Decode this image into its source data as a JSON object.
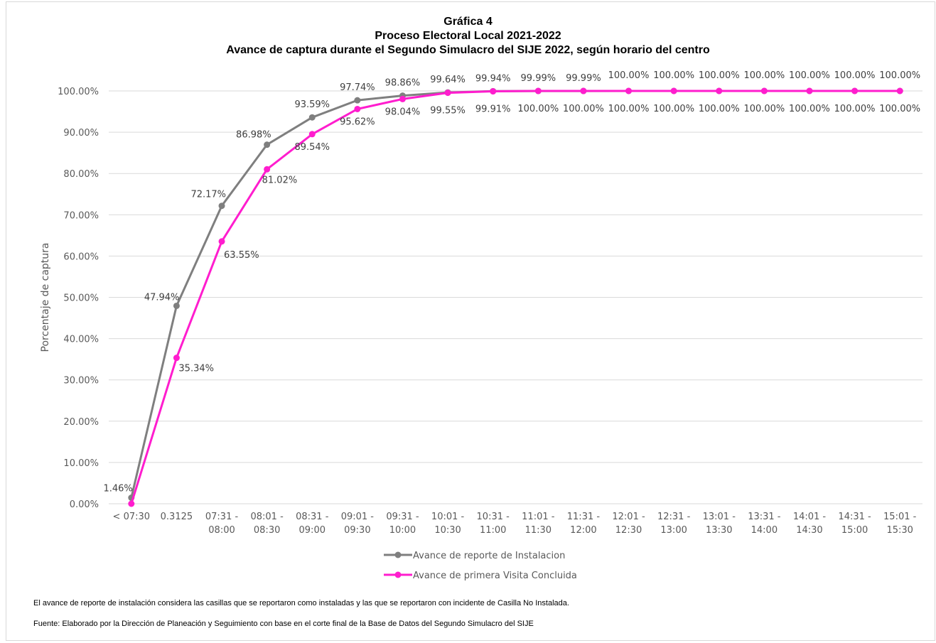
{
  "chart_data": {
    "type": "line",
    "title_lines": [
      "Gráfica 4",
      "Proceso Electoral Local 2021-2022",
      "Avance de captura durante el Segundo Simulacro del SIJE 2022, según horario del centro"
    ],
    "ylabel": "Porcentaje de captura",
    "xlabel": "",
    "ylim": [
      0,
      100
    ],
    "ytick_step": 10,
    "grid": true,
    "legend_position": "bottom",
    "categories": [
      [
        "< 07:30"
      ],
      [
        "0.3125"
      ],
      [
        "07:31 -",
        "08:00"
      ],
      [
        "08:01 -",
        "08:30"
      ],
      [
        "08:31 -",
        "09:00"
      ],
      [
        "09:01 -",
        "09:30"
      ],
      [
        "09:31 -",
        "10:00"
      ],
      [
        "10:01 -",
        "10:30"
      ],
      [
        "10:31 -",
        "11:00"
      ],
      [
        "11:01 -",
        "11:30"
      ],
      [
        "11:31 -",
        "12:00"
      ],
      [
        "12:01 -",
        "12:30"
      ],
      [
        "12:31 -",
        "13:00"
      ],
      [
        "13:01 -",
        "13:30"
      ],
      [
        "13:31 -",
        "14:00"
      ],
      [
        "14:01 -",
        "14:30"
      ],
      [
        "14:31 -",
        "15:00"
      ],
      [
        "15:01 -",
        "15:30"
      ]
    ],
    "series": [
      {
        "name": "Avance de reporte de Instalacion",
        "color": "#7f7f7f",
        "label_position": "above",
        "values": [
          1.46,
          47.94,
          72.17,
          86.98,
          93.59,
          97.74,
          98.86,
          99.64,
          99.94,
          99.99,
          99.99,
          100.0,
          100.0,
          100.0,
          100.0,
          100.0,
          100.0,
          100.0
        ]
      },
      {
        "name": "Avance de primera Visita Concluida",
        "color": "#ff1dce",
        "label_position": "below",
        "values": [
          0.0,
          35.34,
          63.55,
          81.02,
          89.54,
          95.62,
          98.04,
          99.55,
          99.91,
          100.0,
          100.0,
          100.0,
          100.0,
          100.0,
          100.0,
          100.0,
          100.0,
          100.0
        ]
      }
    ],
    "data_labels_series1": [
      "1.46%",
      "47.94%",
      "72.17%",
      "86.98%",
      "93.59%",
      "97.74%",
      "98.86%",
      "99.64%",
      "99.94%",
      "99.99%",
      "99.99%",
      "100.00%",
      "100.00%",
      "100.00%",
      "100.00%",
      "100.00%",
      "100.00%",
      "100.00%"
    ],
    "data_labels_series2": [
      "",
      "35.34%",
      "63.55%",
      "81.02%",
      "89.54%",
      "95.62%",
      "98.04%",
      "99.55%",
      "99.91%",
      "100.00%",
      "100.00%",
      "100.00%",
      "100.00%",
      "100.00%",
      "100.00%",
      "100.00%",
      "100.00%",
      "100.00%"
    ]
  },
  "footnotes": {
    "note": "El avance de reporte de instalación considera las casillas que se reportaron como instaladas y las que se reportaron con incidente de Casilla No Instalada.",
    "source": "Fuente: Elaborado por la Dirección de Planeación y Seguimiento con base en el corte final de la Base de Datos del Segundo Simulacro del SIJE"
  }
}
